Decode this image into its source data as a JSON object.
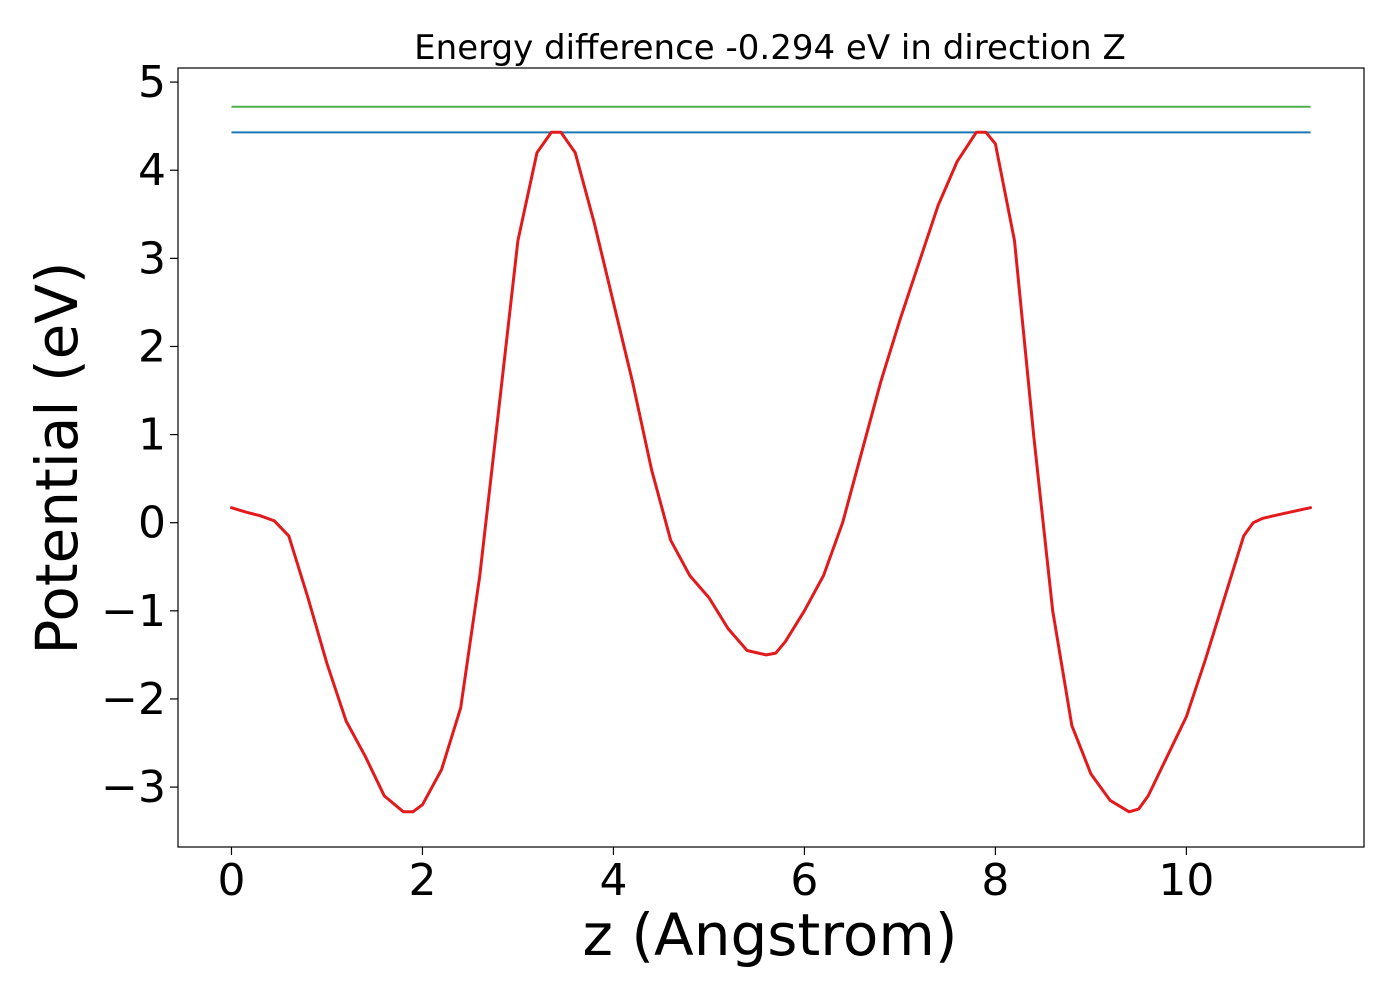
{
  "chart_data": {
    "type": "line",
    "title": "Energy difference -0.294 eV in direction Z",
    "xlabel": "z (Angstrom)",
    "ylabel": "Potential (eV)",
    "xlim": [
      -0.56,
      11.86
    ],
    "ylim": [
      -3.68,
      5.16
    ],
    "xticks": [
      0,
      2,
      4,
      6,
      8,
      10
    ],
    "yticks": [
      -3,
      -2,
      -1,
      0,
      1,
      2,
      3,
      4,
      5
    ],
    "grid": false,
    "colors": {
      "potential": "#e31a1c",
      "level_upper": "#4daf4a",
      "level_lower": "#1f78b4"
    },
    "hlines": [
      {
        "y": 4.72,
        "x_range": [
          0,
          11.3
        ],
        "color": "#4daf4a"
      },
      {
        "y": 4.43,
        "x_range": [
          0,
          11.3
        ],
        "color": "#1f78b4"
      }
    ],
    "series": [
      {
        "x": [
          0,
          0.15,
          0.3,
          0.45,
          0.6,
          0.8,
          1.0,
          1.2,
          1.4,
          1.6,
          1.8,
          1.9,
          2.0,
          2.2,
          2.4,
          2.6,
          2.8,
          3.0,
          3.2,
          3.35,
          3.45,
          3.6,
          3.8,
          4.0,
          4.2,
          4.4,
          4.6,
          4.8,
          5.0,
          5.2,
          5.4,
          5.6,
          5.7,
          5.8,
          6.0,
          6.2,
          6.4,
          6.6,
          6.8,
          7.0,
          7.2,
          7.4,
          7.6,
          7.8,
          7.9,
          8.0,
          8.2,
          8.4,
          8.6,
          8.8,
          9.0,
          9.2,
          9.4,
          9.5,
          9.6,
          9.8,
          10.0,
          10.2,
          10.4,
          10.6,
          10.7,
          10.8,
          11.0,
          11.3
        ],
        "y": [
          0.17,
          0.12,
          0.08,
          0.02,
          -0.15,
          -0.85,
          -1.6,
          -2.25,
          -2.65,
          -3.1,
          -3.28,
          -3.28,
          -3.2,
          -2.8,
          -2.1,
          -0.6,
          1.3,
          3.2,
          4.2,
          4.43,
          4.43,
          4.2,
          3.4,
          2.5,
          1.6,
          0.6,
          -0.2,
          -0.6,
          -0.85,
          -1.2,
          -1.45,
          -1.5,
          -1.48,
          -1.35,
          -1.0,
          -0.6,
          0.0,
          0.8,
          1.6,
          2.3,
          2.95,
          3.6,
          4.1,
          4.43,
          4.43,
          4.3,
          3.2,
          1.0,
          -1.0,
          -2.3,
          -2.85,
          -3.15,
          -3.28,
          -3.25,
          -3.1,
          -2.65,
          -2.2,
          -1.55,
          -0.85,
          -0.15,
          0.0,
          0.05,
          0.1,
          0.17
        ],
        "color": "#e31a1c"
      }
    ]
  }
}
